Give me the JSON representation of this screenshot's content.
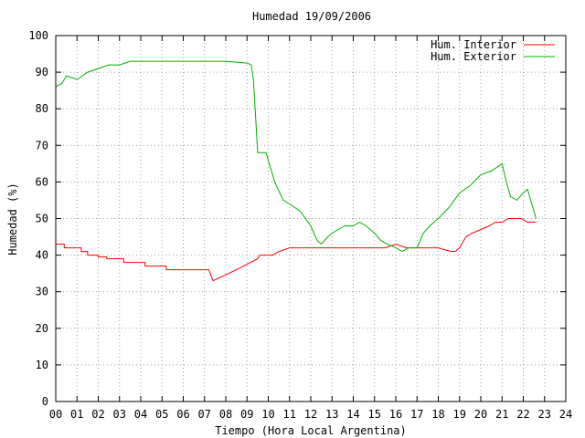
{
  "chart_data": {
    "type": "line",
    "title": "Humedad 19/09/2006",
    "xlabel": "Tiempo (Hora Local Argentina)",
    "ylabel": "Humedad (%)",
    "xlim": [
      0,
      24
    ],
    "ylim": [
      0,
      100
    ],
    "xticks": [
      "00",
      "01",
      "02",
      "03",
      "04",
      "05",
      "06",
      "07",
      "08",
      "09",
      "10",
      "11",
      "12",
      "13",
      "14",
      "15",
      "16",
      "17",
      "18",
      "19",
      "20",
      "21",
      "22",
      "23",
      "24"
    ],
    "yticks": [
      0,
      10,
      20,
      30,
      40,
      50,
      60,
      70,
      80,
      90,
      100
    ],
    "grid": true,
    "legend": "top-right",
    "series": [
      {
        "name": "Hum. Interior",
        "color": "#ff0000",
        "x": [
          0,
          0.4,
          0.4,
          1.2,
          1.2,
          1.5,
          1.5,
          2.0,
          2.0,
          2.4,
          2.4,
          3.2,
          3.2,
          4.2,
          4.2,
          5.2,
          5.2,
          7.2,
          7.4,
          8.5,
          9.5,
          9.6,
          10.2,
          10.5,
          11.0,
          11.5,
          12.5,
          13.0,
          14.0,
          15.0,
          15.5,
          16.0,
          16.5,
          17.0,
          18.0,
          18.6,
          18.8,
          19.0,
          19.3,
          19.6,
          20.0,
          20.4,
          20.7,
          21.0,
          21.3,
          21.6,
          21.9,
          22.2,
          22.6
        ],
        "y": [
          43,
          43,
          42,
          42,
          41,
          41,
          40,
          40,
          39.5,
          39.5,
          39,
          39,
          38,
          38,
          37,
          37,
          36,
          36,
          33,
          36,
          39,
          40,
          40,
          41,
          42,
          42,
          42,
          42,
          42,
          42,
          42,
          43,
          42,
          42,
          42,
          41,
          41,
          42,
          45,
          46,
          47,
          48,
          49,
          49,
          50,
          50,
          50,
          49,
          49
        ]
      },
      {
        "name": "Hum. Exterior",
        "color": "#00b000",
        "x": [
          0,
          0.3,
          0.5,
          1.0,
          1.5,
          2.0,
          2.5,
          3.0,
          3.5,
          4.0,
          5.0,
          6.0,
          7.0,
          8.0,
          9.0,
          9.2,
          9.3,
          9.4,
          9.5,
          9.9,
          10.0,
          10.3,
          10.7,
          11.0,
          11.5,
          12.0,
          12.3,
          12.5,
          12.8,
          13.0,
          13.3,
          13.6,
          14.0,
          14.3,
          14.6,
          15.0,
          15.3,
          15.6,
          16.0,
          16.3,
          16.6,
          17.0,
          17.3,
          17.6,
          18.0,
          18.5,
          19.0,
          19.5,
          20.0,
          20.5,
          21.0,
          21.2,
          21.4,
          21.7,
          22.0,
          22.2,
          22.4,
          22.6
        ],
        "y": [
          86,
          87,
          89,
          88,
          90,
          91,
          92,
          92,
          93,
          93,
          93,
          93,
          93,
          93,
          92.5,
          92,
          88,
          78,
          68,
          68,
          66,
          60,
          55,
          54,
          52,
          48,
          44,
          43,
          45,
          46,
          47,
          48,
          48,
          49,
          48,
          46,
          44,
          43,
          42,
          41,
          42,
          42,
          46,
          48,
          50,
          53,
          57,
          59,
          62,
          63,
          65,
          60,
          56,
          55,
          57,
          58,
          54,
          50
        ]
      }
    ]
  }
}
